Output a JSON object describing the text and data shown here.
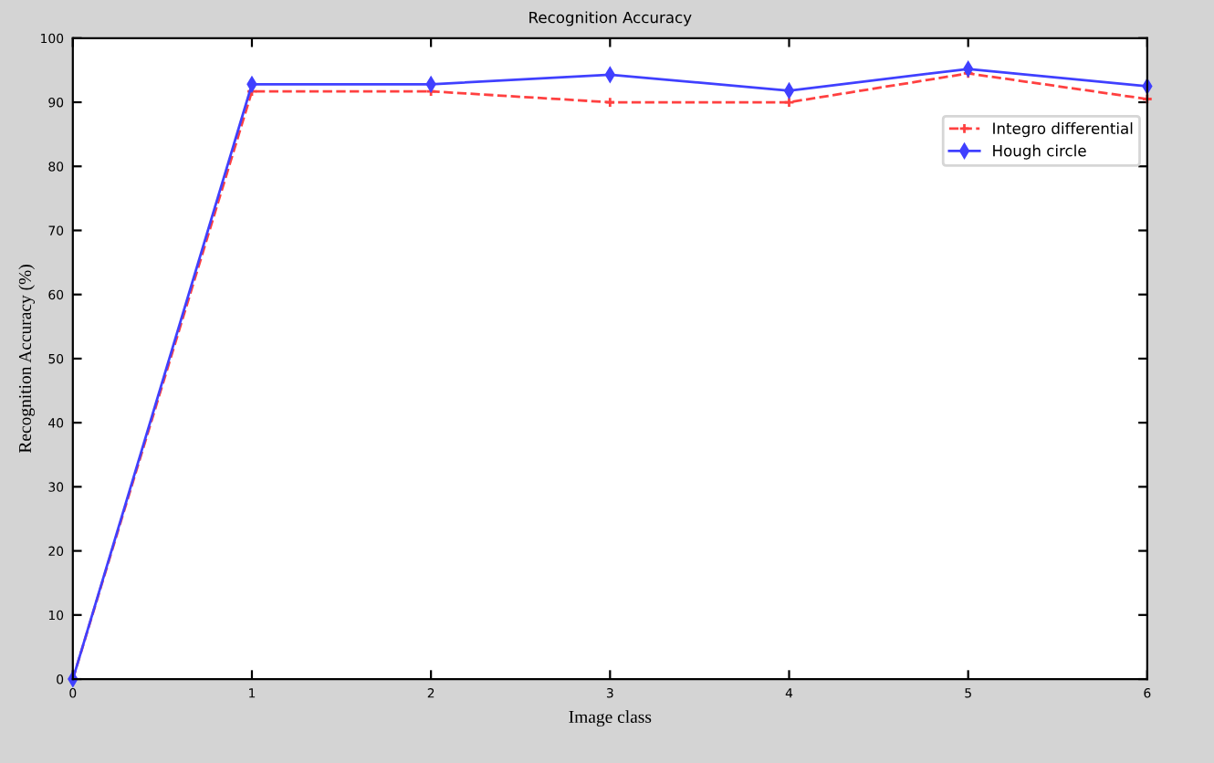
{
  "chart_data": {
    "type": "line",
    "title": "Recognition Accuracy",
    "xlabel": "Image class",
    "ylabel": "Recognition Accuracy (%)",
    "x": [
      0,
      1,
      2,
      3,
      4,
      5,
      6
    ],
    "series": [
      {
        "name": "Integro differential",
        "color": "#ff4040",
        "values": [
          0,
          91.7,
          91.7,
          90,
          90,
          94.5,
          90.5
        ],
        "line_style": "dashed",
        "marker": "cross"
      },
      {
        "name": "Hough circle",
        "color": "#4040ff",
        "values": [
          0,
          92.8,
          92.8,
          94.3,
          91.8,
          95.2,
          92.5
        ],
        "line_style": "solid",
        "marker": "diamond"
      }
    ],
    "xlim": [
      0,
      6
    ],
    "ylim": [
      0,
      100
    ],
    "xticks": [
      0,
      1,
      2,
      3,
      4,
      5,
      6
    ],
    "yticks": [
      0,
      10,
      20,
      30,
      40,
      50,
      60,
      70,
      80,
      90,
      100
    ],
    "grid": false,
    "legend": "top right"
  }
}
